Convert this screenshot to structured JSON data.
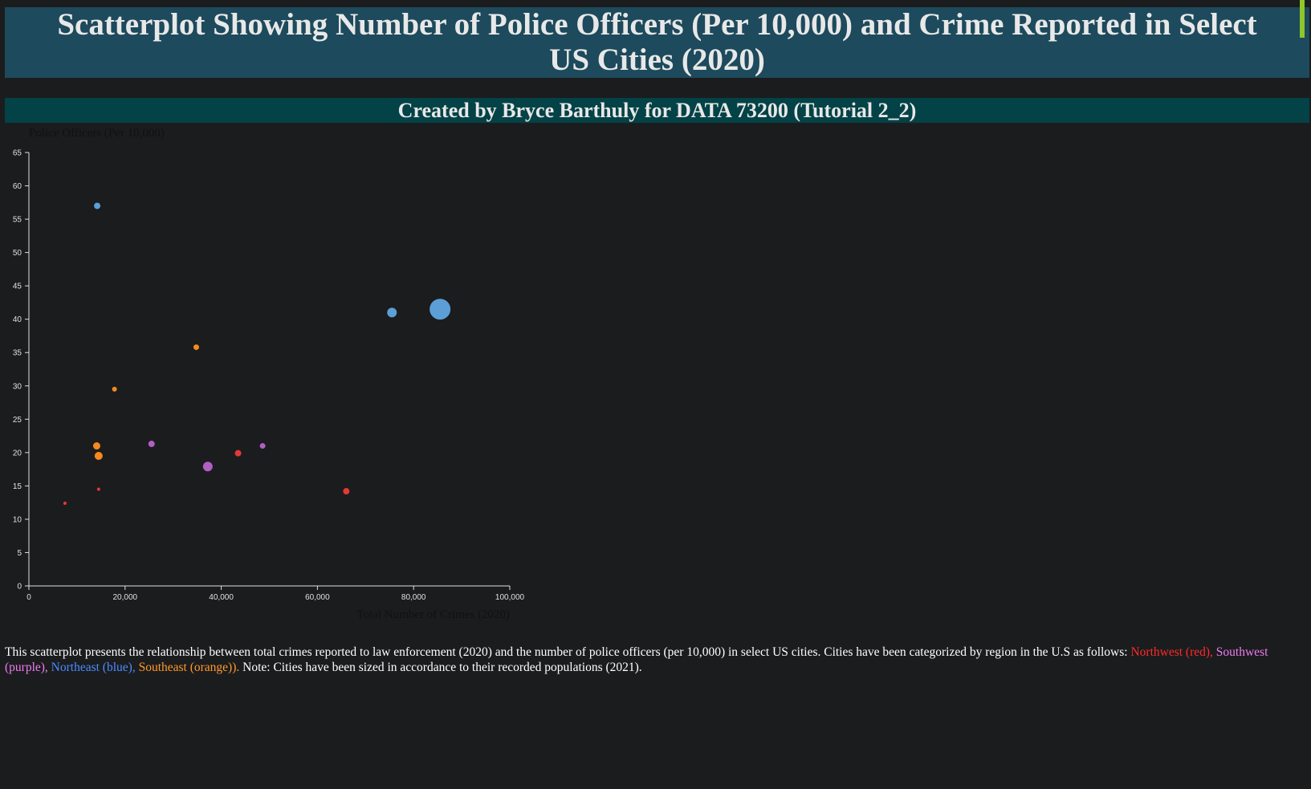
{
  "header": {
    "title": "Scatterplot Showing Number of Police Officers (Per 10,000) and Crime Reported in Select US Cities (2020)",
    "subtitle": "Created by Bryce Barthuly for DATA 73200 (Tutorial 2_2)"
  },
  "colors": {
    "title_bg": "#1d4a5c",
    "subtitle_bg": "#034246",
    "page_bg": "#1b1c1e",
    "accent": "#8fc62a",
    "Northwest": "#e53935",
    "Southwest": "#b25ec4",
    "Northeast": "#5c9fd6",
    "Southeast": "#f5891f"
  },
  "chart_data": {
    "type": "scatter",
    "xlabel": "Total Number of Crimes (2020)",
    "ylabel": "Police Officers (Per 10,000)",
    "xlim": [
      0,
      100000
    ],
    "ylim": [
      0,
      65
    ],
    "x_ticks": [
      "0",
      "20,000",
      "40,000",
      "60,000",
      "80,000",
      "100,000"
    ],
    "y_ticks": [
      "0",
      "5",
      "10",
      "15",
      "20",
      "25",
      "30",
      "35",
      "40",
      "45",
      "50",
      "55",
      "60",
      "65"
    ],
    "grid": false,
    "size_encoding": "population (2021)",
    "points": [
      {
        "region": "Northeast",
        "x": 14200,
        "y": 57.0,
        "r": 4
      },
      {
        "region": "Northeast",
        "x": 75500,
        "y": 41.0,
        "r": 6
      },
      {
        "region": "Northeast",
        "x": 85500,
        "y": 41.5,
        "r": 13
      },
      {
        "region": "Southeast",
        "x": 34800,
        "y": 35.8,
        "r": 3.5
      },
      {
        "region": "Southeast",
        "x": 17800,
        "y": 29.5,
        "r": 3
      },
      {
        "region": "Southeast",
        "x": 14100,
        "y": 21.0,
        "r": 4.5
      },
      {
        "region": "Southeast",
        "x": 14500,
        "y": 19.5,
        "r": 5
      },
      {
        "region": "Southwest",
        "x": 25500,
        "y": 21.3,
        "r": 4
      },
      {
        "region": "Southwest",
        "x": 48600,
        "y": 21.0,
        "r": 3.5
      },
      {
        "region": "Southwest",
        "x": 37200,
        "y": 17.9,
        "r": 6
      },
      {
        "region": "Northwest",
        "x": 43500,
        "y": 19.9,
        "r": 4
      },
      {
        "region": "Northwest",
        "x": 66000,
        "y": 14.2,
        "r": 4
      },
      {
        "region": "Northwest",
        "x": 14500,
        "y": 14.5,
        "r": 2
      },
      {
        "region": "Northwest",
        "x": 7500,
        "y": 12.4,
        "r": 2
      }
    ]
  },
  "caption": {
    "text_before": "This scatterplot presents the relationship between total crimes reported to law enforcement (2020) and the number of police officers (per 10,000) in select US cities. Cities have been categorized by region in the U.S as follows: ",
    "northwest": "Northwest (red),",
    "southwest": "Southwest (purple),",
    "northeast": "Northeast (blue),",
    "southeast": "Southeast (orange)).",
    "text_after": "Note: Cities have been sized in accordance to their recorded populations (2021)."
  }
}
